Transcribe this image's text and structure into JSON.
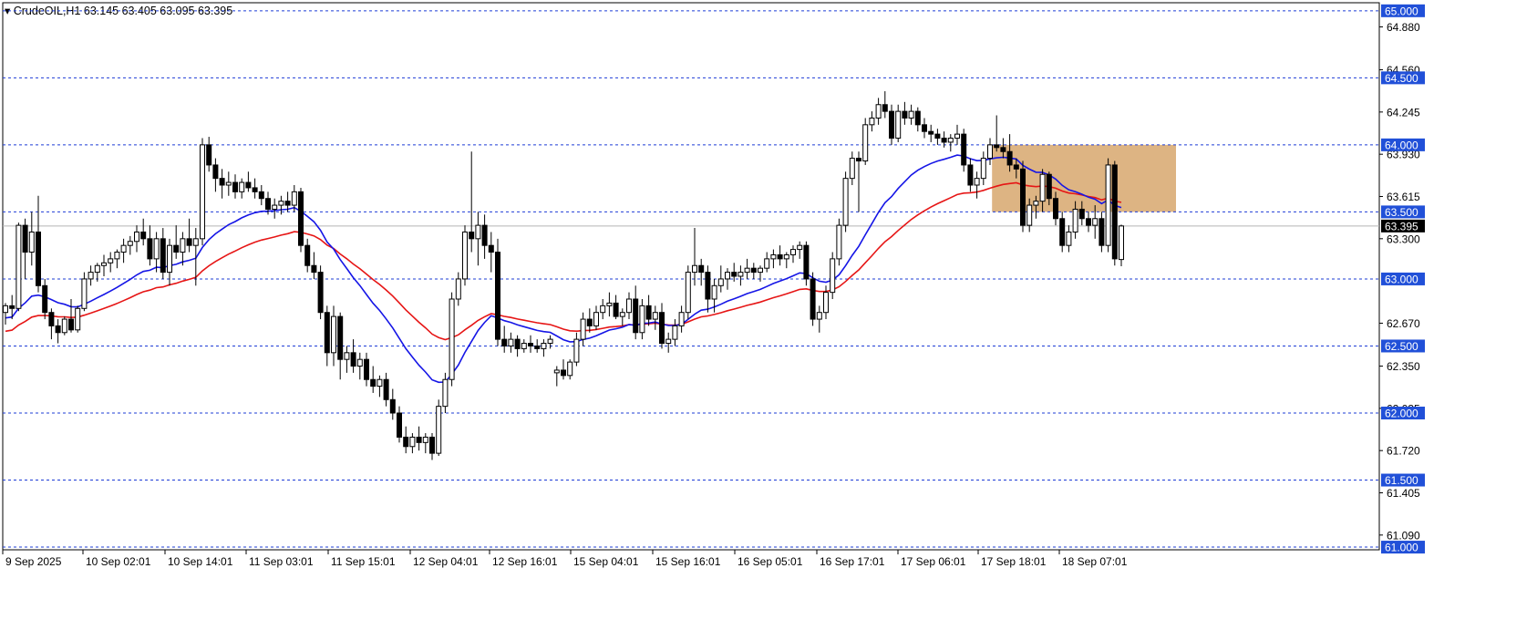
{
  "header": {
    "symbol_tf": "CrudeOIL,H1",
    "ohlc": "63.145 63.405 63.095 63.395"
  },
  "chart_data": {
    "type": "candlestick",
    "symbol": "CrudeOIL",
    "timeframe": "H1",
    "ohlc_last": {
      "open": 63.145,
      "high": 63.405,
      "low": 63.095,
      "close": 63.395
    },
    "ylim": [
      60.98,
      65.06
    ],
    "y_ticks": [
      "64.880",
      "64.560",
      "64.245",
      "63.930",
      "63.615",
      "63.300",
      "62.670",
      "62.350",
      "62.035",
      "61.720",
      "61.405",
      "61.090"
    ],
    "x_ticks": [
      "9 Sep 2025",
      "10 Sep 02:01",
      "10 Sep 14:01",
      "11 Sep 03:01",
      "11 Sep 15:01",
      "12 Sep 04:01",
      "12 Sep 16:01",
      "15 Sep 04:01",
      "15 Sep 16:01",
      "16 Sep 05:01",
      "16 Sep 17:01",
      "17 Sep 06:01",
      "17 Sep 18:01",
      "18 Sep 07:01"
    ],
    "level_lines": [
      "65.000",
      "64.500",
      "64.000",
      "63.500",
      "63.000",
      "62.500",
      "62.000",
      "61.500",
      "61.000"
    ],
    "current_price": "63.395",
    "zone": {
      "from_price": 64.0,
      "to_price": 63.5,
      "color": "#d9ac76",
      "start_bar": 151
    },
    "ma_fast_color": "#1515e6",
    "ma_slow_color": "#e61515",
    "candles": [
      [
        62.75,
        62.82,
        62.66,
        62.8
      ],
      [
        62.8,
        62.88,
        62.7,
        62.78
      ],
      [
        62.78,
        63.42,
        62.76,
        63.4
      ],
      [
        63.4,
        63.45,
        63.0,
        63.2
      ],
      [
        63.2,
        63.5,
        63.1,
        63.35
      ],
      [
        63.35,
        63.62,
        62.9,
        62.95
      ],
      [
        62.95,
        63.0,
        62.7,
        62.75
      ],
      [
        62.75,
        62.78,
        62.55,
        62.65
      ],
      [
        62.65,
        62.7,
        62.52,
        62.6
      ],
      [
        62.6,
        62.72,
        62.58,
        62.7
      ],
      [
        62.7,
        62.85,
        62.6,
        62.62
      ],
      [
        62.62,
        62.8,
        62.6,
        62.78
      ],
      [
        62.78,
        63.05,
        62.76,
        63.0
      ],
      [
        63.0,
        63.1,
        62.95,
        63.05
      ],
      [
        63.05,
        63.12,
        62.98,
        63.1
      ],
      [
        63.1,
        63.18,
        63.02,
        63.12
      ],
      [
        63.12,
        63.2,
        63.05,
        63.15
      ],
      [
        63.15,
        63.22,
        63.08,
        63.2
      ],
      [
        63.2,
        63.3,
        63.12,
        63.25
      ],
      [
        63.25,
        63.32,
        63.18,
        63.28
      ],
      [
        63.28,
        63.4,
        63.2,
        63.35
      ],
      [
        63.35,
        63.45,
        63.25,
        63.3
      ],
      [
        63.3,
        63.4,
        63.1,
        63.15
      ],
      [
        63.15,
        63.35,
        63.05,
        63.3
      ],
      [
        63.3,
        63.38,
        63.0,
        63.05
      ],
      [
        63.05,
        63.3,
        62.95,
        63.25
      ],
      [
        63.25,
        63.4,
        63.15,
        63.2
      ],
      [
        63.2,
        63.35,
        63.1,
        63.3
      ],
      [
        63.3,
        63.45,
        63.2,
        63.25
      ],
      [
        63.25,
        63.38,
        62.95,
        63.3
      ],
      [
        63.3,
        64.05,
        63.25,
        64.0
      ],
      [
        64.0,
        64.06,
        63.8,
        63.85
      ],
      [
        63.85,
        63.9,
        63.65,
        63.75
      ],
      [
        63.75,
        63.82,
        63.6,
        63.7
      ],
      [
        63.7,
        63.8,
        63.62,
        63.72
      ],
      [
        63.72,
        63.78,
        63.6,
        63.65
      ],
      [
        63.65,
        63.75,
        63.6,
        63.72
      ],
      [
        63.72,
        63.8,
        63.65,
        63.68
      ],
      [
        63.68,
        63.75,
        63.6,
        63.65
      ],
      [
        63.65,
        63.7,
        63.55,
        63.6
      ],
      [
        63.6,
        63.65,
        63.48,
        63.52
      ],
      [
        63.52,
        63.6,
        63.45,
        63.55
      ],
      [
        63.55,
        63.62,
        63.48,
        63.58
      ],
      [
        63.58,
        63.65,
        63.5,
        63.55
      ],
      [
        63.55,
        63.7,
        63.5,
        63.65
      ],
      [
        63.65,
        63.68,
        63.2,
        63.25
      ],
      [
        63.25,
        63.3,
        63.05,
        63.1
      ],
      [
        63.1,
        63.2,
        63.0,
        63.05
      ],
      [
        63.05,
        63.1,
        62.7,
        62.75
      ],
      [
        62.75,
        62.8,
        62.35,
        62.45
      ],
      [
        62.45,
        62.8,
        62.35,
        62.72
      ],
      [
        62.72,
        62.75,
        62.25,
        62.4
      ],
      [
        62.4,
        62.5,
        62.3,
        62.45
      ],
      [
        62.45,
        62.55,
        62.3,
        62.35
      ],
      [
        62.35,
        62.45,
        62.25,
        62.4
      ],
      [
        62.4,
        62.45,
        62.2,
        62.25
      ],
      [
        62.25,
        62.35,
        62.15,
        62.2
      ],
      [
        62.2,
        62.28,
        62.12,
        62.25
      ],
      [
        62.25,
        62.3,
        62.05,
        62.1
      ],
      [
        62.1,
        62.18,
        61.95,
        62.0
      ],
      [
        62.0,
        62.05,
        61.78,
        61.82
      ],
      [
        61.82,
        61.9,
        61.7,
        61.75
      ],
      [
        61.75,
        61.85,
        61.7,
        61.82
      ],
      [
        61.82,
        61.9,
        61.72,
        61.78
      ],
      [
        61.78,
        61.85,
        61.7,
        61.82
      ],
      [
        61.82,
        61.85,
        61.65,
        61.7
      ],
      [
        61.7,
        62.1,
        61.68,
        62.05
      ],
      [
        62.05,
        62.3,
        62.0,
        62.25
      ],
      [
        62.25,
        62.9,
        62.2,
        62.85
      ],
      [
        62.85,
        63.05,
        62.8,
        63.0
      ],
      [
        63.0,
        63.4,
        62.95,
        63.35
      ],
      [
        63.35,
        63.95,
        63.2,
        63.3
      ],
      [
        63.3,
        63.5,
        63.1,
        63.4
      ],
      [
        63.4,
        63.48,
        63.15,
        63.25
      ],
      [
        63.25,
        63.35,
        63.05,
        63.2
      ],
      [
        63.2,
        63.3,
        62.5,
        62.55
      ],
      [
        62.55,
        62.65,
        62.45,
        62.5
      ],
      [
        62.5,
        62.6,
        62.45,
        62.55
      ],
      [
        62.55,
        62.58,
        62.42,
        62.48
      ],
      [
        62.48,
        62.55,
        62.45,
        62.52
      ],
      [
        62.52,
        62.58,
        62.45,
        62.5
      ],
      [
        62.5,
        62.55,
        62.45,
        62.48
      ],
      [
        62.48,
        62.55,
        62.42,
        62.52
      ],
      [
        62.52,
        62.58,
        62.48,
        62.55
      ],
      [
        62.3,
        62.35,
        62.2,
        62.32
      ],
      [
        62.32,
        62.4,
        62.25,
        62.28
      ],
      [
        62.28,
        62.4,
        62.25,
        62.38
      ],
      [
        62.38,
        62.6,
        62.35,
        62.55
      ],
      [
        62.55,
        62.75,
        62.5,
        62.7
      ],
      [
        62.7,
        62.78,
        62.6,
        62.65
      ],
      [
        62.65,
        62.8,
        62.62,
        62.75
      ],
      [
        62.75,
        62.85,
        62.7,
        62.8
      ],
      [
        62.8,
        62.9,
        62.72,
        62.82
      ],
      [
        62.82,
        62.88,
        62.7,
        62.72
      ],
      [
        62.72,
        62.78,
        62.65,
        62.75
      ],
      [
        62.75,
        62.9,
        62.7,
        62.85
      ],
      [
        62.85,
        62.95,
        62.55,
        62.6
      ],
      [
        62.6,
        62.85,
        62.55,
        62.8
      ],
      [
        62.8,
        62.88,
        62.65,
        62.7
      ],
      [
        62.7,
        62.8,
        62.62,
        62.75
      ],
      [
        62.75,
        62.82,
        62.48,
        62.52
      ],
      [
        62.52,
        62.6,
        62.45,
        62.55
      ],
      [
        62.55,
        62.7,
        62.5,
        62.65
      ],
      [
        62.65,
        62.8,
        62.6,
        62.75
      ],
      [
        62.75,
        63.1,
        62.7,
        63.05
      ],
      [
        63.05,
        63.38,
        62.95,
        63.1
      ],
      [
        63.1,
        63.15,
        62.95,
        63.05
      ],
      [
        63.05,
        63.1,
        62.75,
        62.85
      ],
      [
        62.85,
        63.0,
        62.75,
        62.95
      ],
      [
        62.95,
        63.1,
        62.9,
        63.0
      ],
      [
        63.0,
        63.08,
        62.92,
        63.05
      ],
      [
        63.05,
        63.12,
        62.98,
        63.02
      ],
      [
        63.02,
        63.1,
        62.95,
        63.05
      ],
      [
        63.05,
        63.15,
        63.0,
        63.08
      ],
      [
        63.08,
        63.12,
        63.0,
        63.05
      ],
      [
        63.05,
        63.1,
        62.98,
        63.08
      ],
      [
        63.08,
        63.2,
        63.05,
        63.15
      ],
      [
        63.15,
        63.22,
        63.08,
        63.18
      ],
      [
        63.18,
        63.25,
        63.1,
        63.15
      ],
      [
        63.15,
        63.2,
        63.08,
        63.18
      ],
      [
        63.18,
        63.25,
        63.12,
        63.22
      ],
      [
        63.22,
        63.28,
        63.15,
        63.25
      ],
      [
        63.25,
        63.28,
        62.95,
        63.0
      ],
      [
        63.0,
        63.05,
        62.65,
        62.7
      ],
      [
        62.7,
        62.8,
        62.6,
        62.75
      ],
      [
        62.75,
        62.95,
        62.7,
        62.9
      ],
      [
        62.9,
        63.2,
        62.85,
        63.15
      ],
      [
        63.15,
        63.45,
        63.1,
        63.4
      ],
      [
        63.4,
        63.8,
        63.35,
        63.75
      ],
      [
        63.75,
        63.95,
        63.7,
        63.9
      ],
      [
        63.9,
        63.95,
        63.5,
        63.88
      ],
      [
        63.88,
        64.2,
        63.85,
        64.15
      ],
      [
        64.15,
        64.25,
        64.1,
        64.2
      ],
      [
        64.2,
        64.35,
        64.15,
        64.3
      ],
      [
        64.3,
        64.4,
        64.2,
        64.25
      ],
      [
        64.25,
        64.3,
        64.0,
        64.05
      ],
      [
        64.05,
        64.3,
        64.02,
        64.25
      ],
      [
        64.25,
        64.32,
        64.15,
        64.2
      ],
      [
        64.2,
        64.3,
        64.15,
        64.25
      ],
      [
        64.25,
        64.28,
        64.1,
        64.15
      ],
      [
        64.15,
        64.2,
        64.05,
        64.1
      ],
      [
        64.1,
        64.15,
        64.02,
        64.08
      ],
      [
        64.08,
        64.12,
        64.0,
        64.05
      ],
      [
        64.05,
        64.1,
        63.98,
        64.02
      ],
      [
        64.02,
        64.08,
        63.95,
        64.05
      ],
      [
        64.05,
        64.15,
        64.0,
        64.08
      ],
      [
        64.08,
        64.12,
        63.8,
        63.85
      ],
      [
        63.85,
        63.9,
        63.65,
        63.7
      ],
      [
        63.7,
        63.8,
        63.6,
        63.75
      ],
      [
        63.75,
        63.95,
        63.7,
        63.9
      ],
      [
        63.9,
        64.05,
        63.85,
        64.0
      ],
      [
        64.0,
        64.22,
        63.95,
        63.98
      ],
      [
        63.98,
        64.05,
        63.9,
        63.95
      ],
      [
        63.95,
        64.08,
        63.8,
        63.85
      ],
      [
        63.85,
        63.9,
        63.75,
        63.82
      ],
      [
        63.82,
        63.88,
        63.35,
        63.4
      ],
      [
        63.4,
        63.6,
        63.35,
        63.55
      ],
      [
        63.55,
        63.62,
        63.45,
        63.58
      ],
      [
        63.58,
        63.82,
        63.5,
        63.78
      ],
      [
        63.78,
        63.8,
        63.55,
        63.6
      ],
      [
        63.6,
        63.65,
        63.4,
        63.45
      ],
      [
        63.45,
        63.5,
        63.2,
        63.25
      ],
      [
        63.25,
        63.4,
        63.2,
        63.35
      ],
      [
        63.35,
        63.58,
        63.3,
        63.52
      ],
      [
        63.52,
        63.58,
        63.4,
        63.45
      ],
      [
        63.45,
        63.5,
        63.35,
        63.4
      ],
      [
        63.4,
        63.55,
        63.3,
        63.45
      ],
      [
        63.45,
        63.5,
        63.2,
        63.25
      ],
      [
        63.25,
        63.9,
        63.2,
        63.85
      ],
      [
        63.85,
        63.88,
        63.1,
        63.15
      ],
      [
        63.145,
        63.405,
        63.095,
        63.395
      ]
    ]
  }
}
